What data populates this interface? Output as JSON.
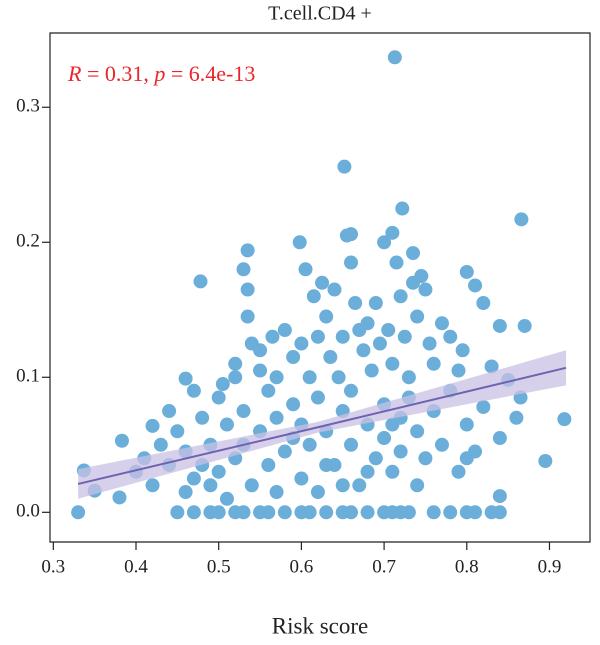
{
  "chart_data": {
    "type": "scatter",
    "title": "T.cell.CD4 +",
    "x_label": "Risk score",
    "annotation": [
      "R",
      " = 0.31, ",
      "p",
      " = 6.4e-13"
    ],
    "annotation_color": "#e8262b",
    "color": "#6aaed9",
    "fit_color": "#6f62b0",
    "band_color": "#c9c0e4",
    "xlim": [
      0.296,
      0.949
    ],
    "ylim": [
      -0.022,
      0.355
    ],
    "xticks": [
      0.3,
      0.4,
      0.5,
      0.6,
      0.7,
      0.8,
      0.9
    ],
    "yticks": [
      {
        "value": 0,
        "label": "0.0"
      },
      0.1,
      0.2,
      0.3
    ],
    "grid": false,
    "fit": {
      "x": [
        0.33,
        0.62,
        0.92
      ],
      "y": [
        0.021,
        0.063,
        0.107
      ],
      "lower": [
        0.01,
        0.059,
        0.094
      ],
      "upper": [
        0.032,
        0.067,
        0.12
      ]
    },
    "x": [
      0.713,
      0.652,
      0.722,
      0.866,
      0.71,
      0.66,
      0.598,
      0.535,
      0.735,
      0.478,
      0.8,
      0.81,
      0.82,
      0.84,
      0.87,
      0.33,
      0.337,
      0.35,
      0.38,
      0.383,
      0.42,
      0.46,
      0.895,
      0.918,
      0.86,
      0.865,
      0.84,
      0.84,
      0.85,
      0.8,
      0.82,
      0.83,
      0.45,
      0.47,
      0.49,
      0.5,
      0.52,
      0.53,
      0.55,
      0.56,
      0.58,
      0.6,
      0.61,
      0.63,
      0.65,
      0.66,
      0.68,
      0.7,
      0.71,
      0.72,
      0.73,
      0.76,
      0.78,
      0.8,
      0.81,
      0.83,
      0.84,
      0.53,
      0.535,
      0.535,
      0.54,
      0.55,
      0.52,
      0.52,
      0.505,
      0.55,
      0.565,
      0.57,
      0.58,
      0.59,
      0.6,
      0.605,
      0.61,
      0.615,
      0.62,
      0.625,
      0.63,
      0.635,
      0.64,
      0.645,
      0.65,
      0.655,
      0.66,
      0.665,
      0.67,
      0.675,
      0.68,
      0.685,
      0.69,
      0.695,
      0.7,
      0.705,
      0.71,
      0.715,
      0.72,
      0.725,
      0.73,
      0.74,
      0.75,
      0.755,
      0.76,
      0.77,
      0.78,
      0.79,
      0.795,
      0.735,
      0.745,
      0.4,
      0.41,
      0.42,
      0.43,
      0.44,
      0.45,
      0.46,
      0.47,
      0.48,
      0.49,
      0.5,
      0.5,
      0.51,
      0.52,
      0.53,
      0.54,
      0.55,
      0.56,
      0.56,
      0.57,
      0.58,
      0.59,
      0.6,
      0.6,
      0.61,
      0.62,
      0.62,
      0.63,
      0.64,
      0.65,
      0.66,
      0.66,
      0.67,
      0.68,
      0.69,
      0.7,
      0.7,
      0.71,
      0.72,
      0.72,
      0.73,
      0.74,
      0.74,
      0.75,
      0.76,
      0.77,
      0.78,
      0.79,
      0.8,
      0.81,
      0.46,
      0.48,
      0.51,
      0.53,
      0.57,
      0.59,
      0.63,
      0.65,
      0.68,
      0.71,
      0.44,
      0.47,
      0.49
    ],
    "values": [
      0.337,
      0.256,
      0.225,
      0.217,
      0.207,
      0.206,
      0.2,
      0.194,
      0.192,
      0.171,
      0.178,
      0.168,
      0.155,
      0.138,
      0.138,
      0.0,
      0.031,
      0.016,
      0.011,
      0.053,
      0.064,
      0.099,
      0.038,
      0.069,
      0.07,
      0.085,
      0.055,
      0.012,
      0.098,
      0.04,
      0.078,
      0.108,
      0,
      0,
      0,
      0,
      0,
      0,
      0,
      0,
      0,
      0,
      0,
      0,
      0,
      0,
      0,
      0,
      0,
      0,
      0,
      0,
      0,
      0,
      0,
      0,
      0,
      0.18,
      0.165,
      0.145,
      0.125,
      0.12,
      0.11,
      0.1,
      0.095,
      0.105,
      0.13,
      0.1,
      0.135,
      0.115,
      0.125,
      0.18,
      0.1,
      0.16,
      0.13,
      0.17,
      0.145,
      0.115,
      0.165,
      0.1,
      0.13,
      0.205,
      0.185,
      0.155,
      0.135,
      0.12,
      0.14,
      0.105,
      0.155,
      0.125,
      0.2,
      0.135,
      0.11,
      0.185,
      0.16,
      0.13,
      0.1,
      0.145,
      0.165,
      0.125,
      0.11,
      0.14,
      0.13,
      0.105,
      0.12,
      0.17,
      0.175,
      0.03,
      0.04,
      0.02,
      0.05,
      0.035,
      0.06,
      0.045,
      0.025,
      0.07,
      0.05,
      0.085,
      0.03,
      0.065,
      0.04,
      0.075,
      0.02,
      0.06,
      0.09,
      0.035,
      0.07,
      0.045,
      0.08,
      0.025,
      0.065,
      0.05,
      0.085,
      0.015,
      0.06,
      0.035,
      0.075,
      0.05,
      0.09,
      0.02,
      0.065,
      0.04,
      0.08,
      0.055,
      0.03,
      0.07,
      0.045,
      0.085,
      0.02,
      0.06,
      0.04,
      0.075,
      0.05,
      0.09,
      0.03,
      0.065,
      0.045,
      0.015,
      0.035,
      0.01,
      0.05,
      0.015,
      0.055,
      0.035,
      0.02,
      0.03,
      0.065,
      0.075,
      0.09,
      0.02
    ]
  }
}
